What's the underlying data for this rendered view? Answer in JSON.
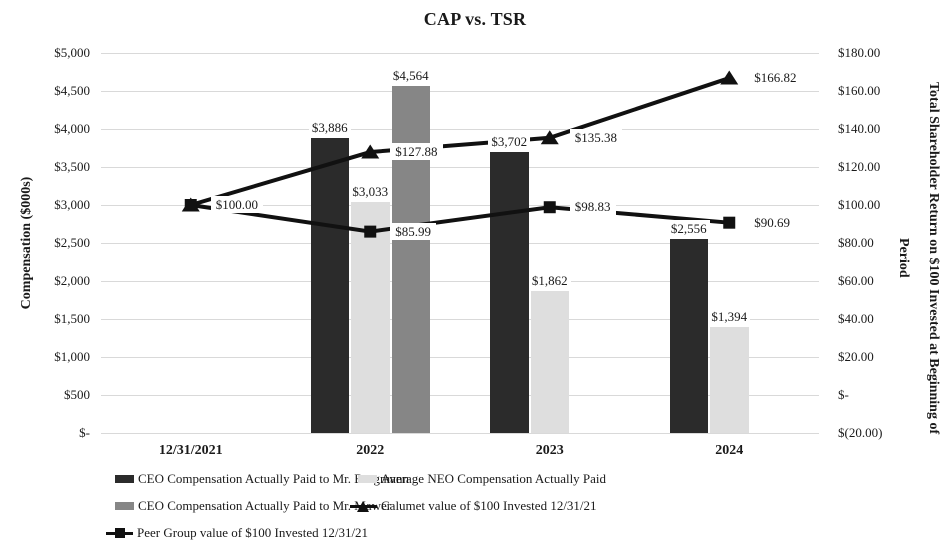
{
  "chart_data": {
    "type": "combo-bar-line",
    "title": "CAP vs. TSR",
    "categories": [
      "12/31/2021",
      "2022",
      "2023",
      "2024"
    ],
    "bar_series": [
      {
        "name": "CEO Compensation Actually Paid to Mr. Borgmann",
        "axis": "left",
        "color": "#2b2b2b",
        "values": [
          null,
          3886,
          3702,
          2556
        ],
        "data_labels": [
          "",
          "$3,886",
          "$3,702",
          "$2,556"
        ]
      },
      {
        "name": "Average NEO Compensation Actually Paid",
        "axis": "left",
        "color": "#dedede",
        "values": [
          null,
          3033,
          1862,
          1394
        ],
        "data_labels": [
          "",
          "$3,033",
          "$1,862",
          "$1,394"
        ]
      },
      {
        "name": "CEO Compensation Actually Paid to Mr. Mawer",
        "axis": "left",
        "color": "#868686",
        "values": [
          null,
          4564,
          null,
          null
        ],
        "data_labels": [
          "",
          "$4,564",
          "",
          ""
        ]
      }
    ],
    "line_series": [
      {
        "name": "Calumet value of $100 Invested 12/31/21",
        "axis": "right",
        "marker": "triangle",
        "color": "#111111",
        "values": [
          100.0,
          127.88,
          135.38,
          166.82
        ],
        "data_labels": [
          "",
          "$127.88",
          "$135.38",
          "$166.82"
        ]
      },
      {
        "name": "Peer Group value of $100 Invested 12/31/21",
        "axis": "right",
        "marker": "square",
        "color": "#111111",
        "values": [
          100.0,
          85.99,
          98.83,
          90.69
        ],
        "data_labels": [
          "$100.00",
          "$85.99",
          "$98.83",
          "$90.69"
        ]
      }
    ],
    "left_axis": {
      "title": "Compensation ($000s)",
      "range": [
        0,
        5000
      ],
      "tick_values": [
        5000,
        4500,
        4000,
        3500,
        3000,
        2500,
        2000,
        1500,
        1000,
        500,
        0
      ],
      "tick_labels": [
        "$5,000",
        "$4,500",
        "$4,000",
        "$3,500",
        "$3,000",
        "$2,500",
        "$2,000",
        "$1,500",
        "$1,000",
        "$500",
        "$-"
      ]
    },
    "right_axis": {
      "title": "Total Shareholder Return on $100 Invested at Beginning of Period",
      "title_lines": [
        "Total Shareholder Return on $100 Invested at Beginning of",
        "Period"
      ],
      "range": [
        -20,
        180
      ],
      "tick_values": [
        180,
        160,
        140,
        120,
        100,
        80,
        60,
        40,
        20,
        0,
        -20
      ],
      "tick_labels": [
        "$180.00",
        "$160.00",
        "$140.00",
        "$120.00",
        "$100.00",
        "$80.00",
        "$60.00",
        "$40.00",
        "$20.00",
        "$-",
        "$(20.00)"
      ]
    },
    "legend": {
      "position": "bottom",
      "items": [
        {
          "label": "CEO Compensation Actually Paid to Mr. Borgmann",
          "swatch": "bar",
          "color": "#2b2b2b"
        },
        {
          "label": "Average NEO Compensation Actually Paid",
          "swatch": "bar",
          "color": "#dedede"
        },
        {
          "label": "CEO Compensation Actually Paid to Mr. Mawer",
          "swatch": "bar",
          "color": "#868686"
        },
        {
          "label": "Calumet value of $100 Invested 12/31/21",
          "swatch": "line-triangle",
          "color": "#111111"
        },
        {
          "label": "Peer Group value of $100 Invested 12/31/21",
          "swatch": "line-square",
          "color": "#111111"
        }
      ]
    },
    "style": {
      "gridlines": true,
      "gridline_color": "#d9d9d9",
      "text_color": "#1a1a1a",
      "background": "#ffffff"
    }
  }
}
